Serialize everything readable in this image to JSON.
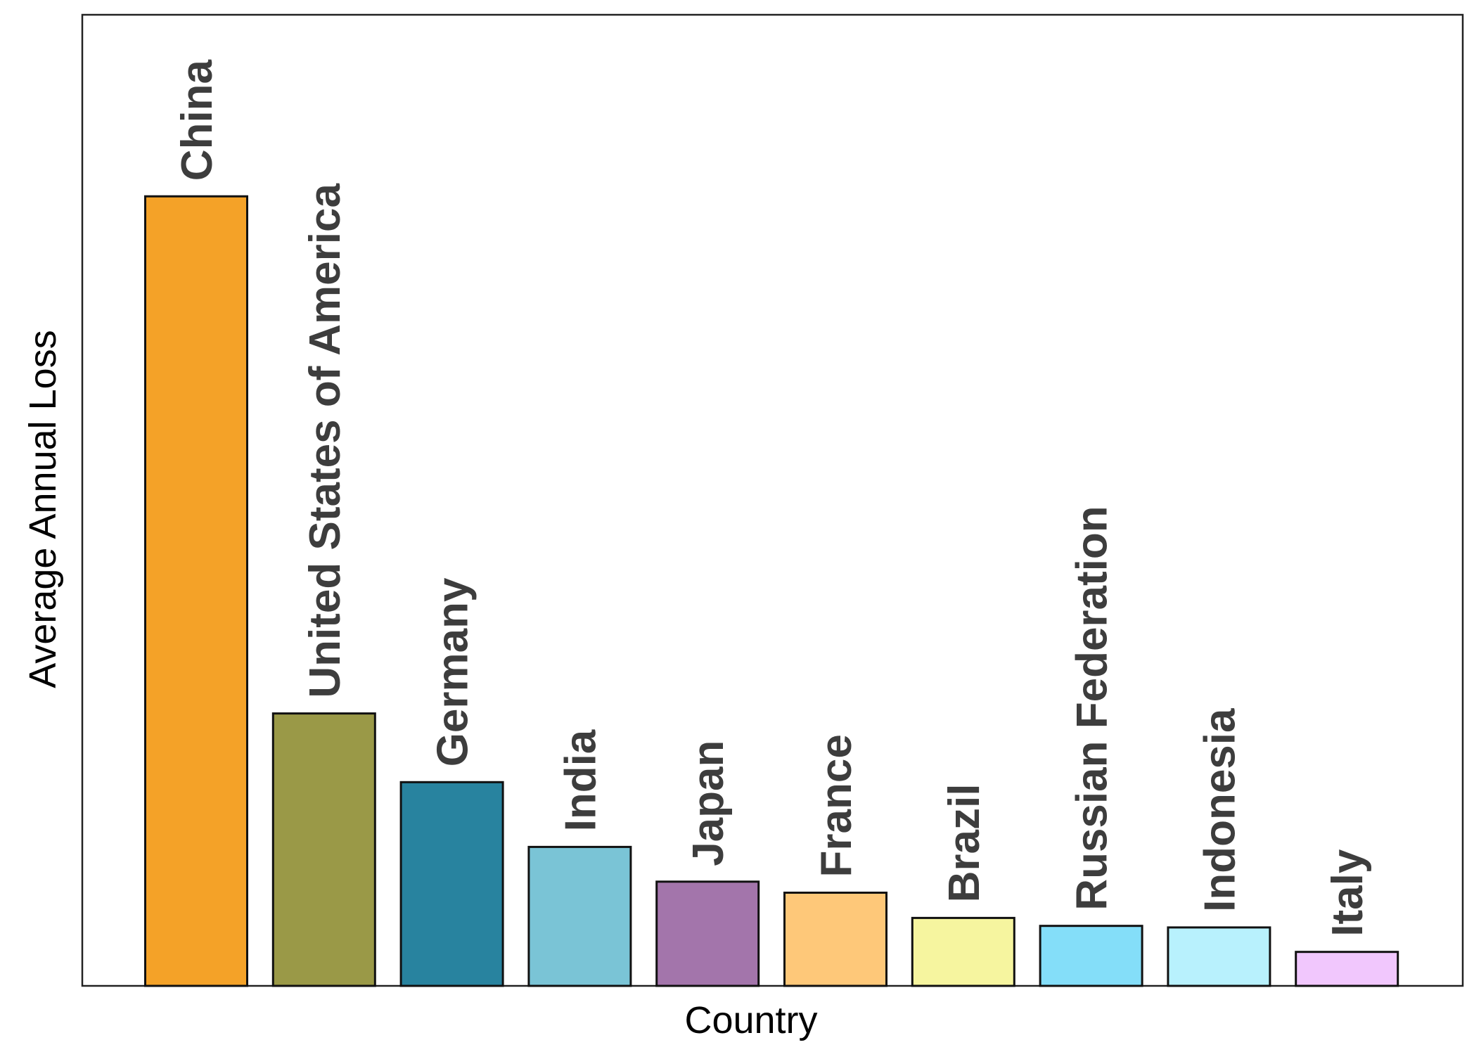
{
  "chart_data": {
    "type": "bar",
    "xlabel": "Country",
    "ylabel": "Average Annual Loss",
    "ylim": [
      0,
      123
    ],
    "grid": false,
    "y_ticks_visible": false,
    "categories": [
      "China",
      "United States of America",
      "Germany",
      "India",
      "Japan",
      "France",
      "Brazil",
      "Russian Federation",
      "Indonesia",
      "Italy"
    ],
    "values": [
      100,
      34.5,
      25.8,
      17.6,
      13.2,
      11.8,
      8.6,
      7.6,
      7.4,
      4.3
    ],
    "colors": [
      "#f4a228",
      "#9a9947",
      "#28839f",
      "#7ac4d6",
      "#a375ab",
      "#fec879",
      "#f6f59f",
      "#84def9",
      "#b8f1fd",
      "#f1c7fd"
    ]
  }
}
